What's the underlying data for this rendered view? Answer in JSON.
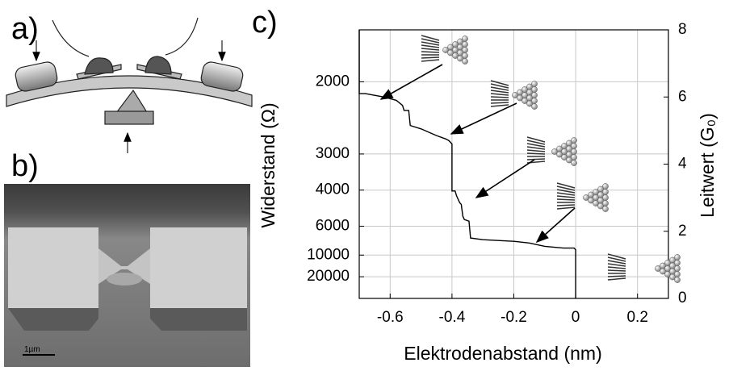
{
  "panel_labels": [
    "a)",
    "b)",
    "c)"
  ],
  "scale_bar": "1µm",
  "chart_data": {
    "type": "line",
    "xlabel": "Elektrodenabstand (nm)",
    "ylabel": "Widerstand (Ω)",
    "y2label": "Leitwert (G₀)",
    "xlim": [
      -0.7,
      0.3
    ],
    "xticks": [
      -0.6,
      -0.4,
      -0.2,
      0,
      0.2
    ],
    "yticks": [
      2000,
      3000,
      4000,
      6000,
      10000,
      20000
    ],
    "y2lim": [
      0,
      8
    ],
    "y2ticks": [
      0,
      2,
      4,
      6,
      8
    ],
    "grid": true,
    "series": [
      {
        "color": "#000000",
        "axis": "y2",
        "x": [
          -0.7,
          -0.7,
          -0.68,
          -0.62,
          -0.58,
          -0.56,
          -0.555,
          -0.54,
          -0.535,
          -0.5,
          -0.45,
          -0.42,
          -0.41,
          -0.4,
          -0.4,
          -0.39,
          -0.385,
          -0.38,
          -0.375,
          -0.37,
          -0.365,
          -0.36,
          -0.345,
          -0.34,
          -0.3,
          -0.2,
          -0.15,
          -0.1,
          -0.04,
          -0.005,
          0,
          0
        ],
        "values": [
          8.1,
          6.1,
          6.1,
          6.0,
          5.9,
          5.75,
          5.6,
          5.6,
          5.15,
          5.05,
          4.85,
          4.75,
          4.7,
          4.6,
          3.2,
          3.2,
          3.05,
          2.95,
          2.85,
          2.8,
          2.45,
          2.35,
          2.3,
          1.8,
          1.75,
          1.7,
          1.65,
          1.55,
          1.5,
          1.5,
          1.45,
          0
        ]
      }
    ]
  }
}
